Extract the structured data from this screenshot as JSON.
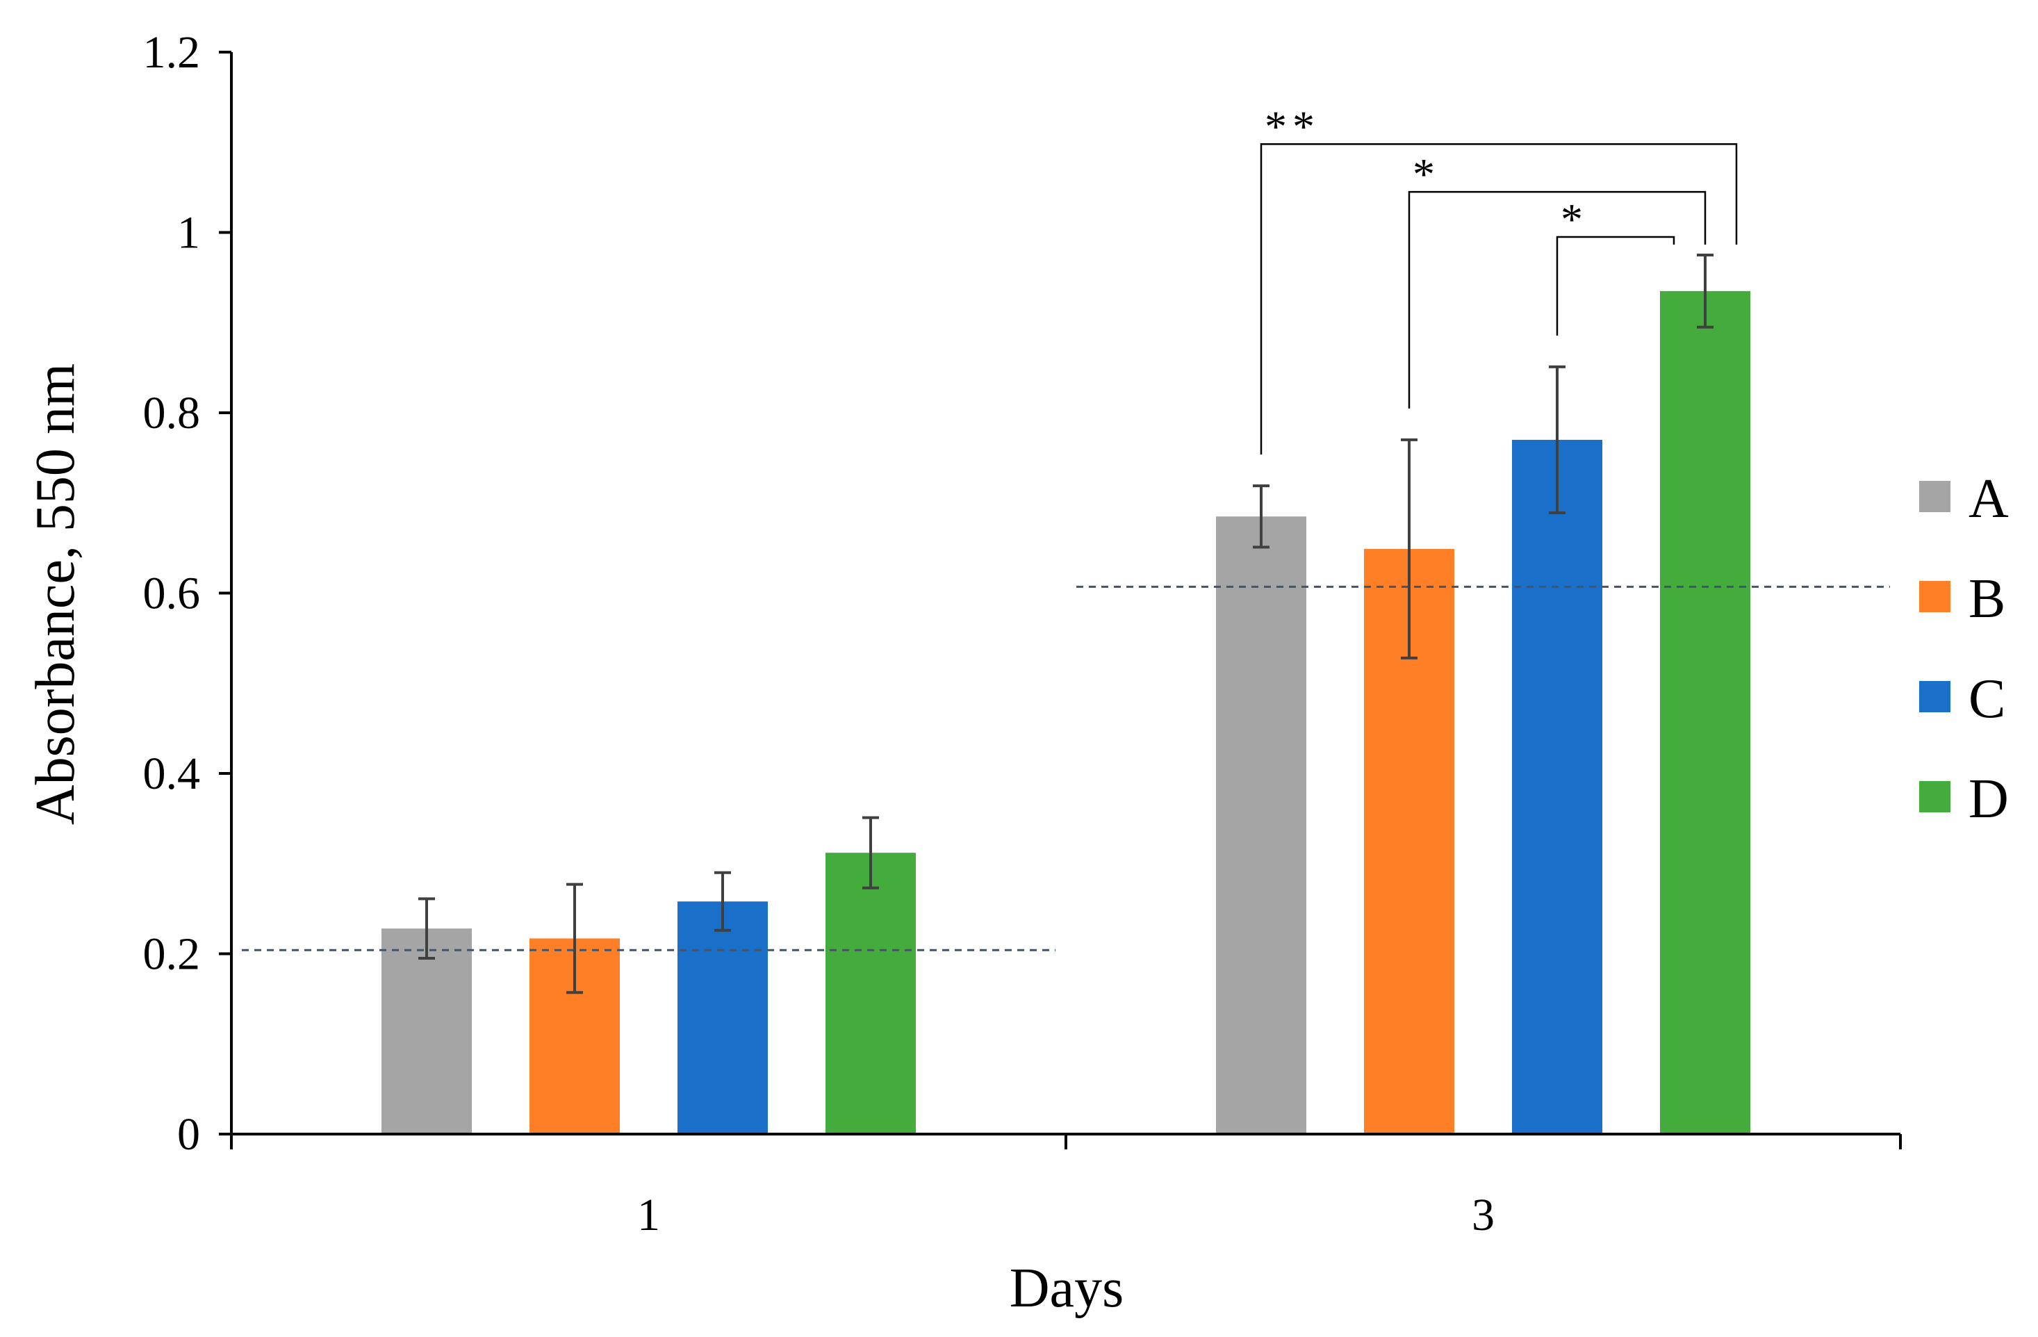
{
  "chart_data": {
    "type": "bar",
    "title": "",
    "xlabel": "Days",
    "ylabel": "Absorbance,  550 nm",
    "ylim": [
      0,
      1.2
    ],
    "yticks": [
      "0",
      "0.2",
      "0.4",
      "0.6",
      "0.8",
      "1",
      "1.2"
    ],
    "ytick_values": [
      0,
      0.2,
      0.4,
      0.6,
      0.8,
      1.0,
      1.2
    ],
    "categories": [
      "1",
      "3"
    ],
    "series": [
      {
        "name": "A",
        "color": "#a5a5a5",
        "values": [
          0.228,
          0.685
        ],
        "errors": [
          0.033,
          0.034
        ]
      },
      {
        "name": "B",
        "color": "#ff7f27",
        "values": [
          0.217,
          0.649
        ],
        "errors": [
          0.06,
          0.121
        ]
      },
      {
        "name": "C",
        "color": "#1a70c8",
        "values": [
          0.258,
          0.77
        ],
        "errors": [
          0.032,
          0.081
        ]
      },
      {
        "name": "D",
        "color": "#44ac3c",
        "values": [
          0.312,
          0.935
        ],
        "errors": [
          0.039,
          0.04
        ]
      }
    ],
    "reference_lines": [
      {
        "category": "1",
        "value": 0.204
      },
      {
        "category": "3",
        "value": 0.607
      }
    ],
    "significance": [
      {
        "category": "3",
        "from": "A",
        "to": "D",
        "label": "**",
        "level": 1.098
      },
      {
        "category": "3",
        "from": "B",
        "to": "D",
        "label": "*",
        "level": 1.045
      },
      {
        "category": "3",
        "from": "C",
        "to": "D",
        "label": "*",
        "level": 0.995
      }
    ],
    "legend_position": "right"
  }
}
